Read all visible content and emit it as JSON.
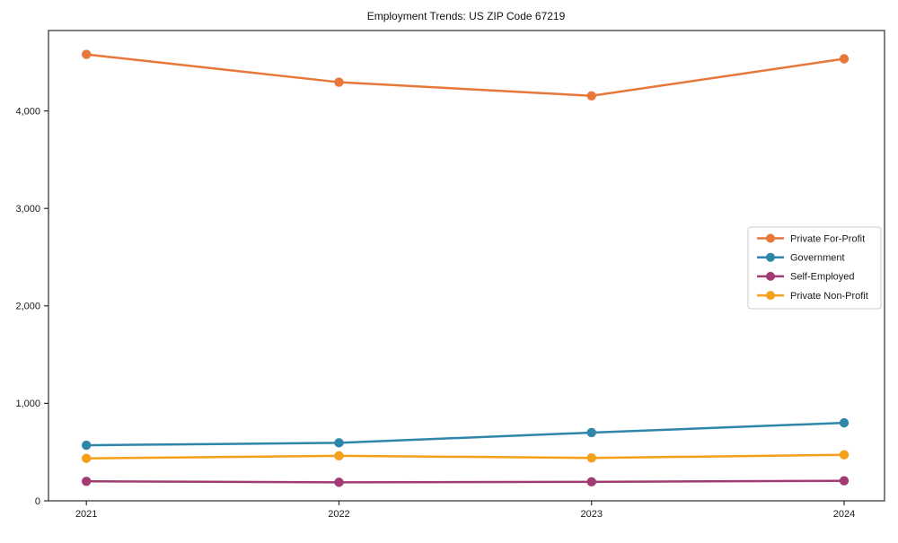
{
  "chart_data": {
    "type": "line",
    "title": "Employment Trends: US ZIP Code 67219",
    "xlabel": "",
    "ylabel": "",
    "x": [
      2021,
      2022,
      2023,
      2024
    ],
    "x_tick_labels": [
      "2021",
      "2022",
      "2023",
      "2024"
    ],
    "y_ticks": [
      0,
      1000,
      2000,
      3000,
      4000
    ],
    "y_tick_labels": [
      "0",
      "1,000",
      "2,000",
      "3,000",
      "4,000"
    ],
    "xlim": [
      2020.85,
      2024.16
    ],
    "ylim": [
      0,
      4825
    ],
    "grid": false,
    "marker": "circle",
    "legend_position": "center right",
    "series": [
      {
        "name": "Private For-Profit",
        "color": "#E8773A",
        "values": [
          4580,
          4295,
          4155,
          4535
        ]
      },
      {
        "name": "Government",
        "color": "#2E86AB",
        "values": [
          570,
          595,
          700,
          800
        ]
      },
      {
        "name": "Self-Employed",
        "color": "#A23B72",
        "values": [
          200,
          190,
          195,
          205
        ]
      },
      {
        "name": "Private Non-Profit",
        "color": "#F5A01A",
        "values": [
          435,
          462,
          440,
          472
        ]
      }
    ]
  },
  "style": {
    "spine_color": "#2b2b2b",
    "tick_color": "#2b2b2b",
    "legend_border_color": "#cccccc",
    "legend_background": "#ffffff",
    "background": "#ffffff"
  }
}
